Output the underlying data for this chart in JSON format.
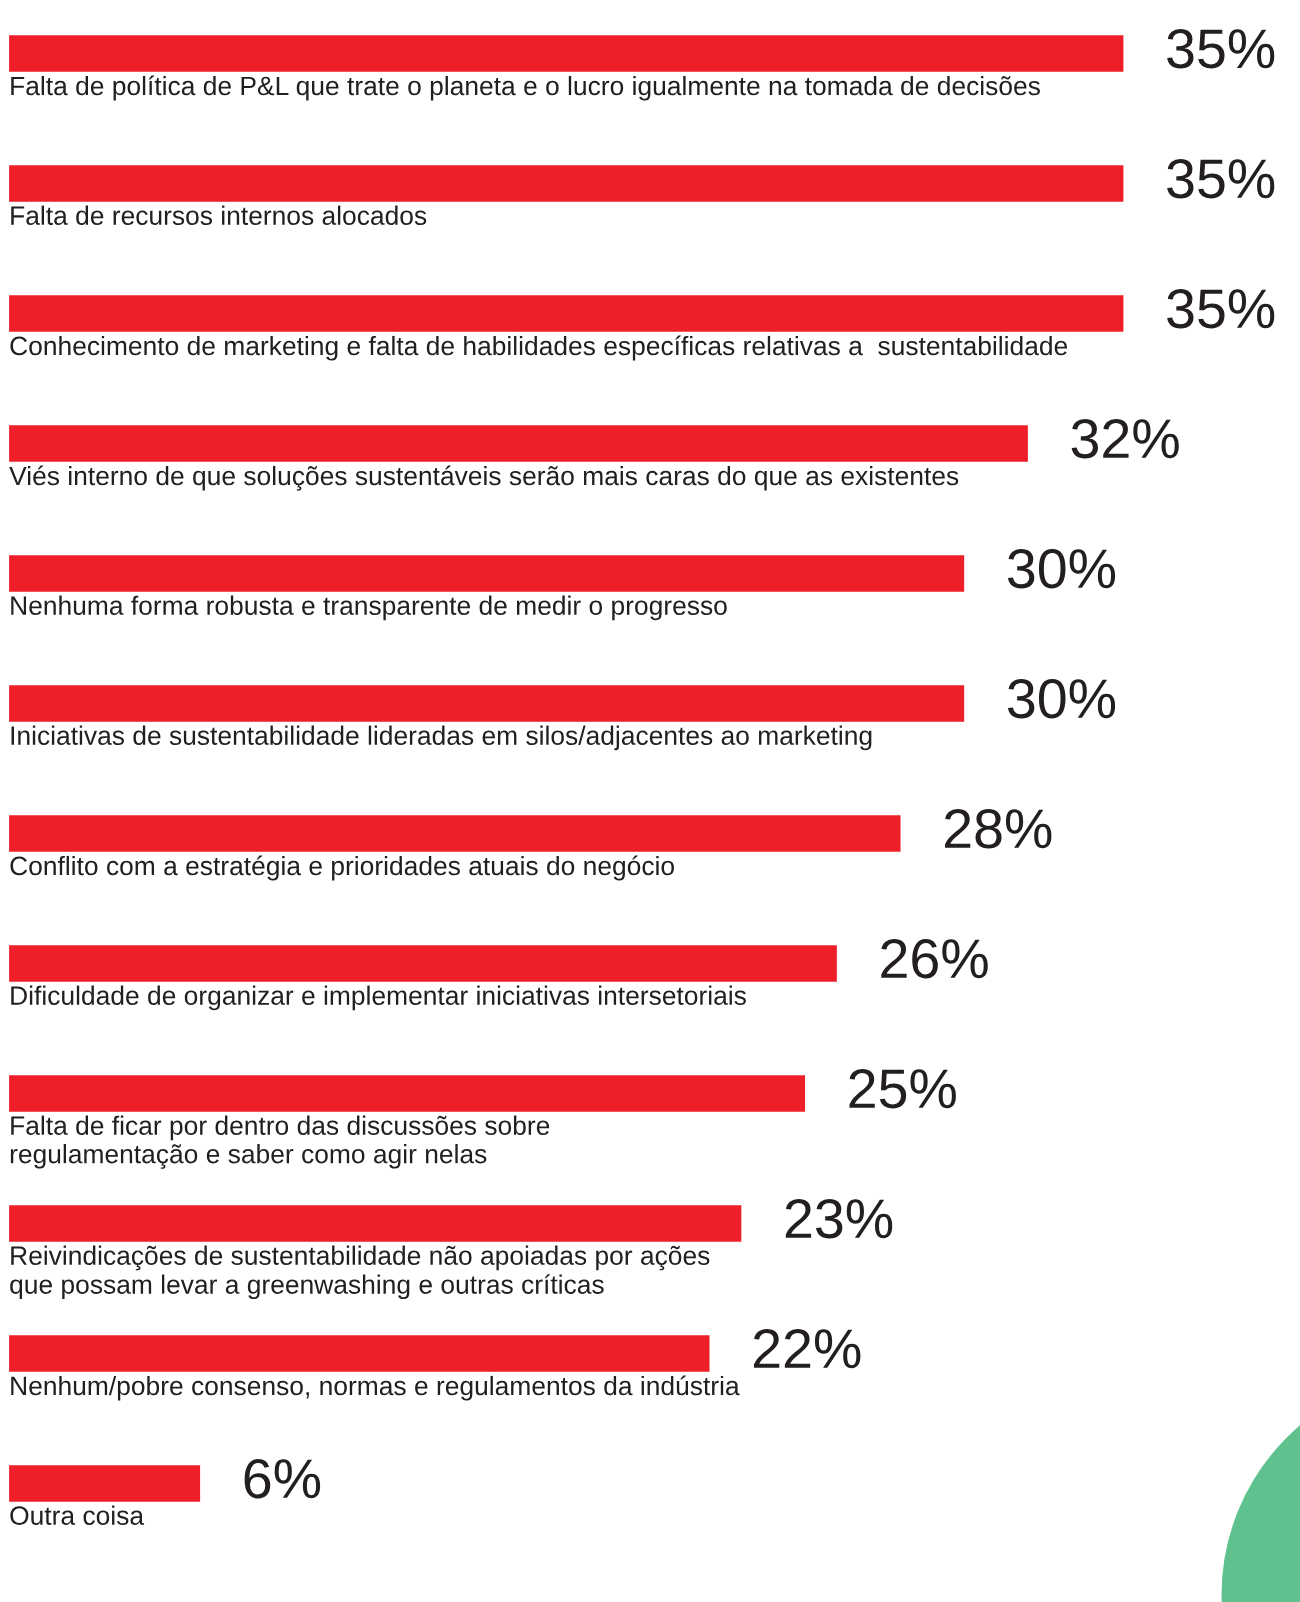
{
  "chart_data": {
    "type": "bar",
    "orientation": "horizontal",
    "categories": [
      "Falta de política de P&L que trate o planeta e o lucro igualmente na tomada de decisões",
      "Falta de recursos internos alocados",
      "Conhecimento de marketing e falta de habilidades específicas relativas a  sustentabilidade",
      "Viés interno de que soluções sustentáveis serão mais caras do que as existentes",
      "Nenhuma forma robusta e transparente de medir o progresso",
      "Iniciativas de sustentabilidade lideradas em silos/adjacentes ao marketing",
      "Conflito com a estratégia e prioridades atuais do negócio",
      "Dificuldade de organizar e implementar iniciativas intersetoriais",
      "Falta de ficar por dentro das discussões sobre\nregulamentação e saber como agir nelas",
      "Reivindicações de sustentabilidade não apoiadas por ações\nque possam levar a greenwashing e outras críticas",
      "Nenhum/pobre consenso, normas e regulamentos da indústria",
      "Outra coisa"
    ],
    "values": [
      35,
      35,
      35,
      32,
      30,
      30,
      28,
      26,
      25,
      23,
      22,
      6
    ],
    "value_labels": [
      "35%",
      "35%",
      "35%",
      "32%",
      "30%",
      "30%",
      "28%",
      "26%",
      "25%",
      "23%",
      "22%",
      "6%"
    ],
    "color": "#ee1f29"
  }
}
